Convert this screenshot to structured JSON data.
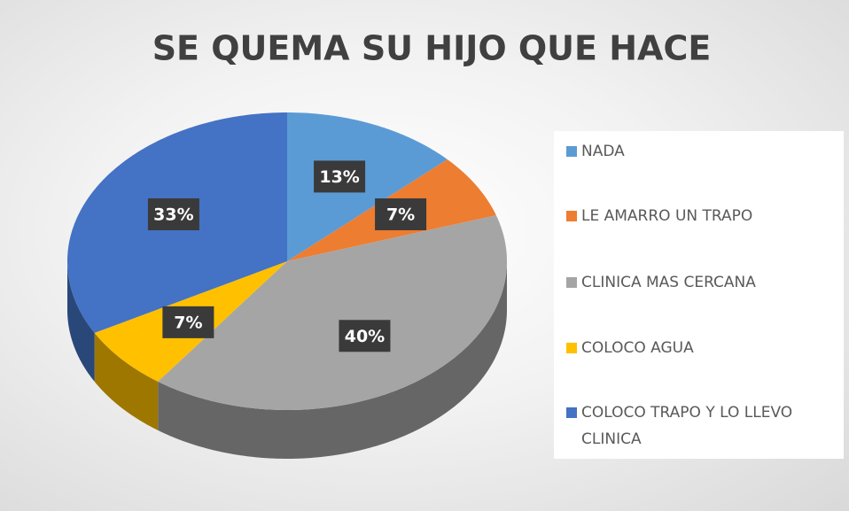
{
  "chart_data": {
    "type": "pie",
    "title": "SE QUEMA SU HIJO QUE HACE",
    "categories": [
      "NADA",
      "LE AMARRO UN TRAPO",
      "CLINICA MAS CERCANA",
      "COLOCO AGUA",
      "COLOCO TRAPO Y LO LLEVO CLINICA"
    ],
    "values": [
      13,
      7,
      40,
      7,
      33
    ],
    "value_labels": [
      "13%",
      "7%",
      "40%",
      "7%",
      "33%"
    ],
    "colors": [
      "#5b9bd5",
      "#ed7d31",
      "#a5a5a5",
      "#ffc000",
      "#4472c4"
    ],
    "legend": "right"
  }
}
